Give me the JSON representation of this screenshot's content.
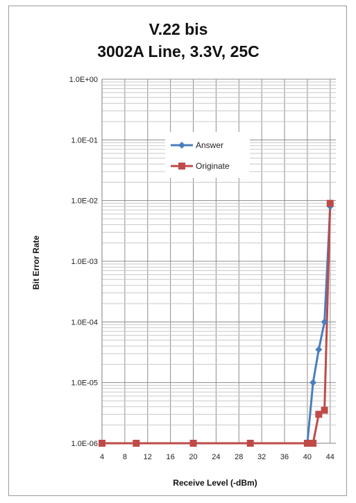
{
  "chart_data": {
    "type": "line",
    "title": "V.22 bis",
    "subtitle": "3002A Line, 3.3V, 25C",
    "xlabel": "Receive Level (-dBm)",
    "ylabel": "Bit Error Rate",
    "x_ticks": [
      "4",
      "8",
      "12",
      "16",
      "20",
      "24",
      "28",
      "32",
      "36",
      "40",
      "44"
    ],
    "y_ticks": [
      "1.0E+00",
      "1.0E-01",
      "1.0E-02",
      "1.0E-03",
      "1.0E-04",
      "1.0E-05",
      "1.0E-06"
    ],
    "xlim": [
      4,
      45
    ],
    "ylim": [
      1e-06,
      1
    ],
    "yscale": "log",
    "grid": true,
    "legend_position": "center-top",
    "series": [
      {
        "name": "Answer",
        "color": "#4a7ebb",
        "marker": "diamond",
        "x": [
          4,
          10,
          20,
          30,
          40,
          41,
          42,
          43,
          44
        ],
        "y": [
          1e-06,
          1e-06,
          1e-06,
          1e-06,
          1e-06,
          1e-05,
          3.5e-05,
          0.0001,
          0.008
        ]
      },
      {
        "name": "Originate",
        "color": "#be4b48",
        "marker": "square",
        "x": [
          4,
          10,
          20,
          30,
          40,
          41,
          42,
          43,
          44
        ],
        "y": [
          1e-06,
          1e-06,
          1e-06,
          1e-06,
          1e-06,
          1e-06,
          3e-06,
          3.5e-06,
          0.009
        ]
      }
    ]
  }
}
